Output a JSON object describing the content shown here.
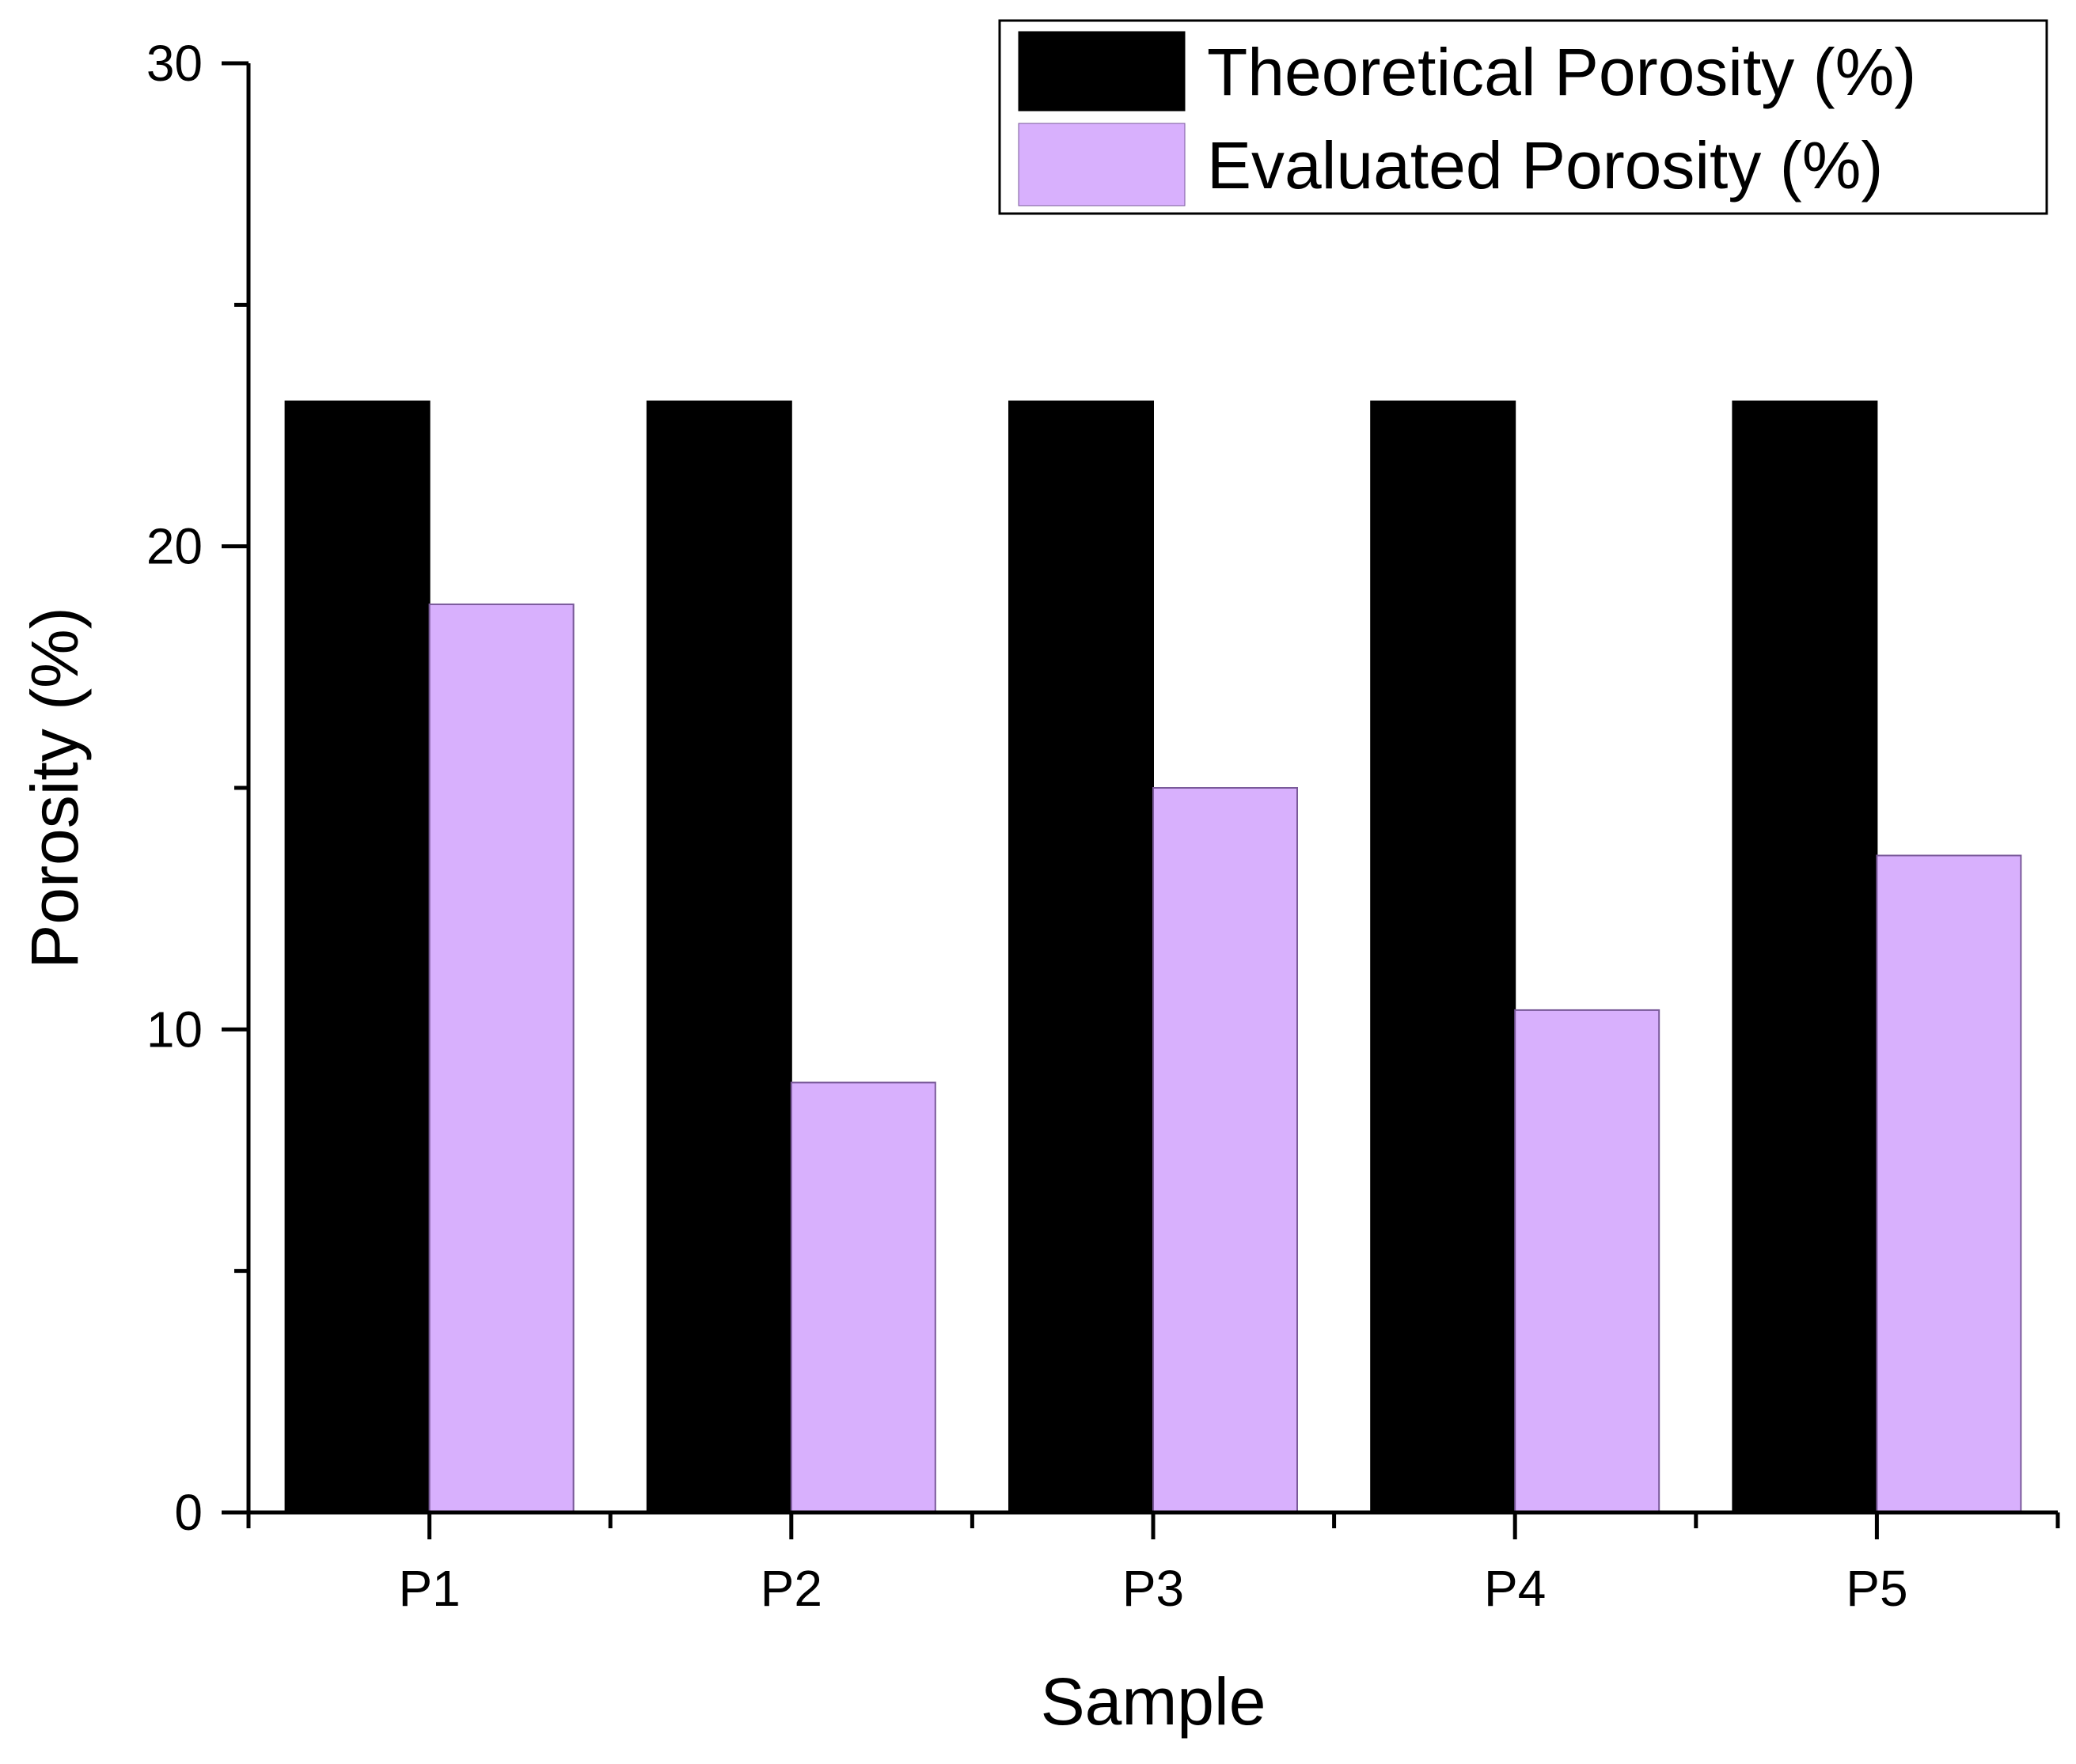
{
  "chart_data": {
    "type": "bar",
    "title": "",
    "xlabel": "Sample",
    "ylabel": "Porosity (%)",
    "categories": [
      "P1",
      "P2",
      "P3",
      "P4",
      "P5"
    ],
    "series": [
      {
        "name": "Theoretical Porosity (%)",
        "color": "#000000",
        "values": [
          23,
          23,
          23,
          23,
          23
        ]
      },
      {
        "name": "Evaluated Porosity (%)",
        "color": "#d8b0fd",
        "values": [
          18.8,
          8.9,
          15.0,
          10.4,
          13.6
        ]
      }
    ],
    "ylim": [
      0,
      30
    ],
    "yticks": [
      0,
      10,
      20,
      30
    ],
    "yticks_minor": [
      5,
      15,
      25
    ],
    "grid": false,
    "legend_position": "top-right"
  }
}
